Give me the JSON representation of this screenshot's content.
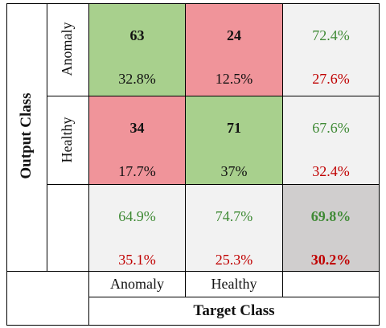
{
  "chart_data": {
    "type": "heatmap",
    "xlabel": "Target Class",
    "ylabel": "Output Class",
    "row_labels": [
      "Anomaly",
      "Healthy"
    ],
    "col_labels": [
      "Anomaly",
      "Healthy"
    ],
    "matrix": [
      [
        63,
        24
      ],
      [
        34,
        71
      ]
    ],
    "matrix_pct": [
      [
        "32.8%",
        "12.5%"
      ],
      [
        "17.7%",
        "37%"
      ]
    ],
    "row_summary": [
      [
        "72.4%",
        "27.6%"
      ],
      [
        "67.6%",
        "32.4%"
      ]
    ],
    "col_summary": [
      [
        "64.9%",
        "35.1%"
      ],
      [
        "74.7%",
        "25.3%"
      ]
    ],
    "overall": [
      "69.8%",
      "30.2%"
    ]
  },
  "colors": {
    "correct": "#a8d08d",
    "incorrect": "#f0949a",
    "summary": "#f2f2f2",
    "overall": "#d0cece",
    "good_text": "#3f8a35",
    "bad_text": "#c00000"
  }
}
